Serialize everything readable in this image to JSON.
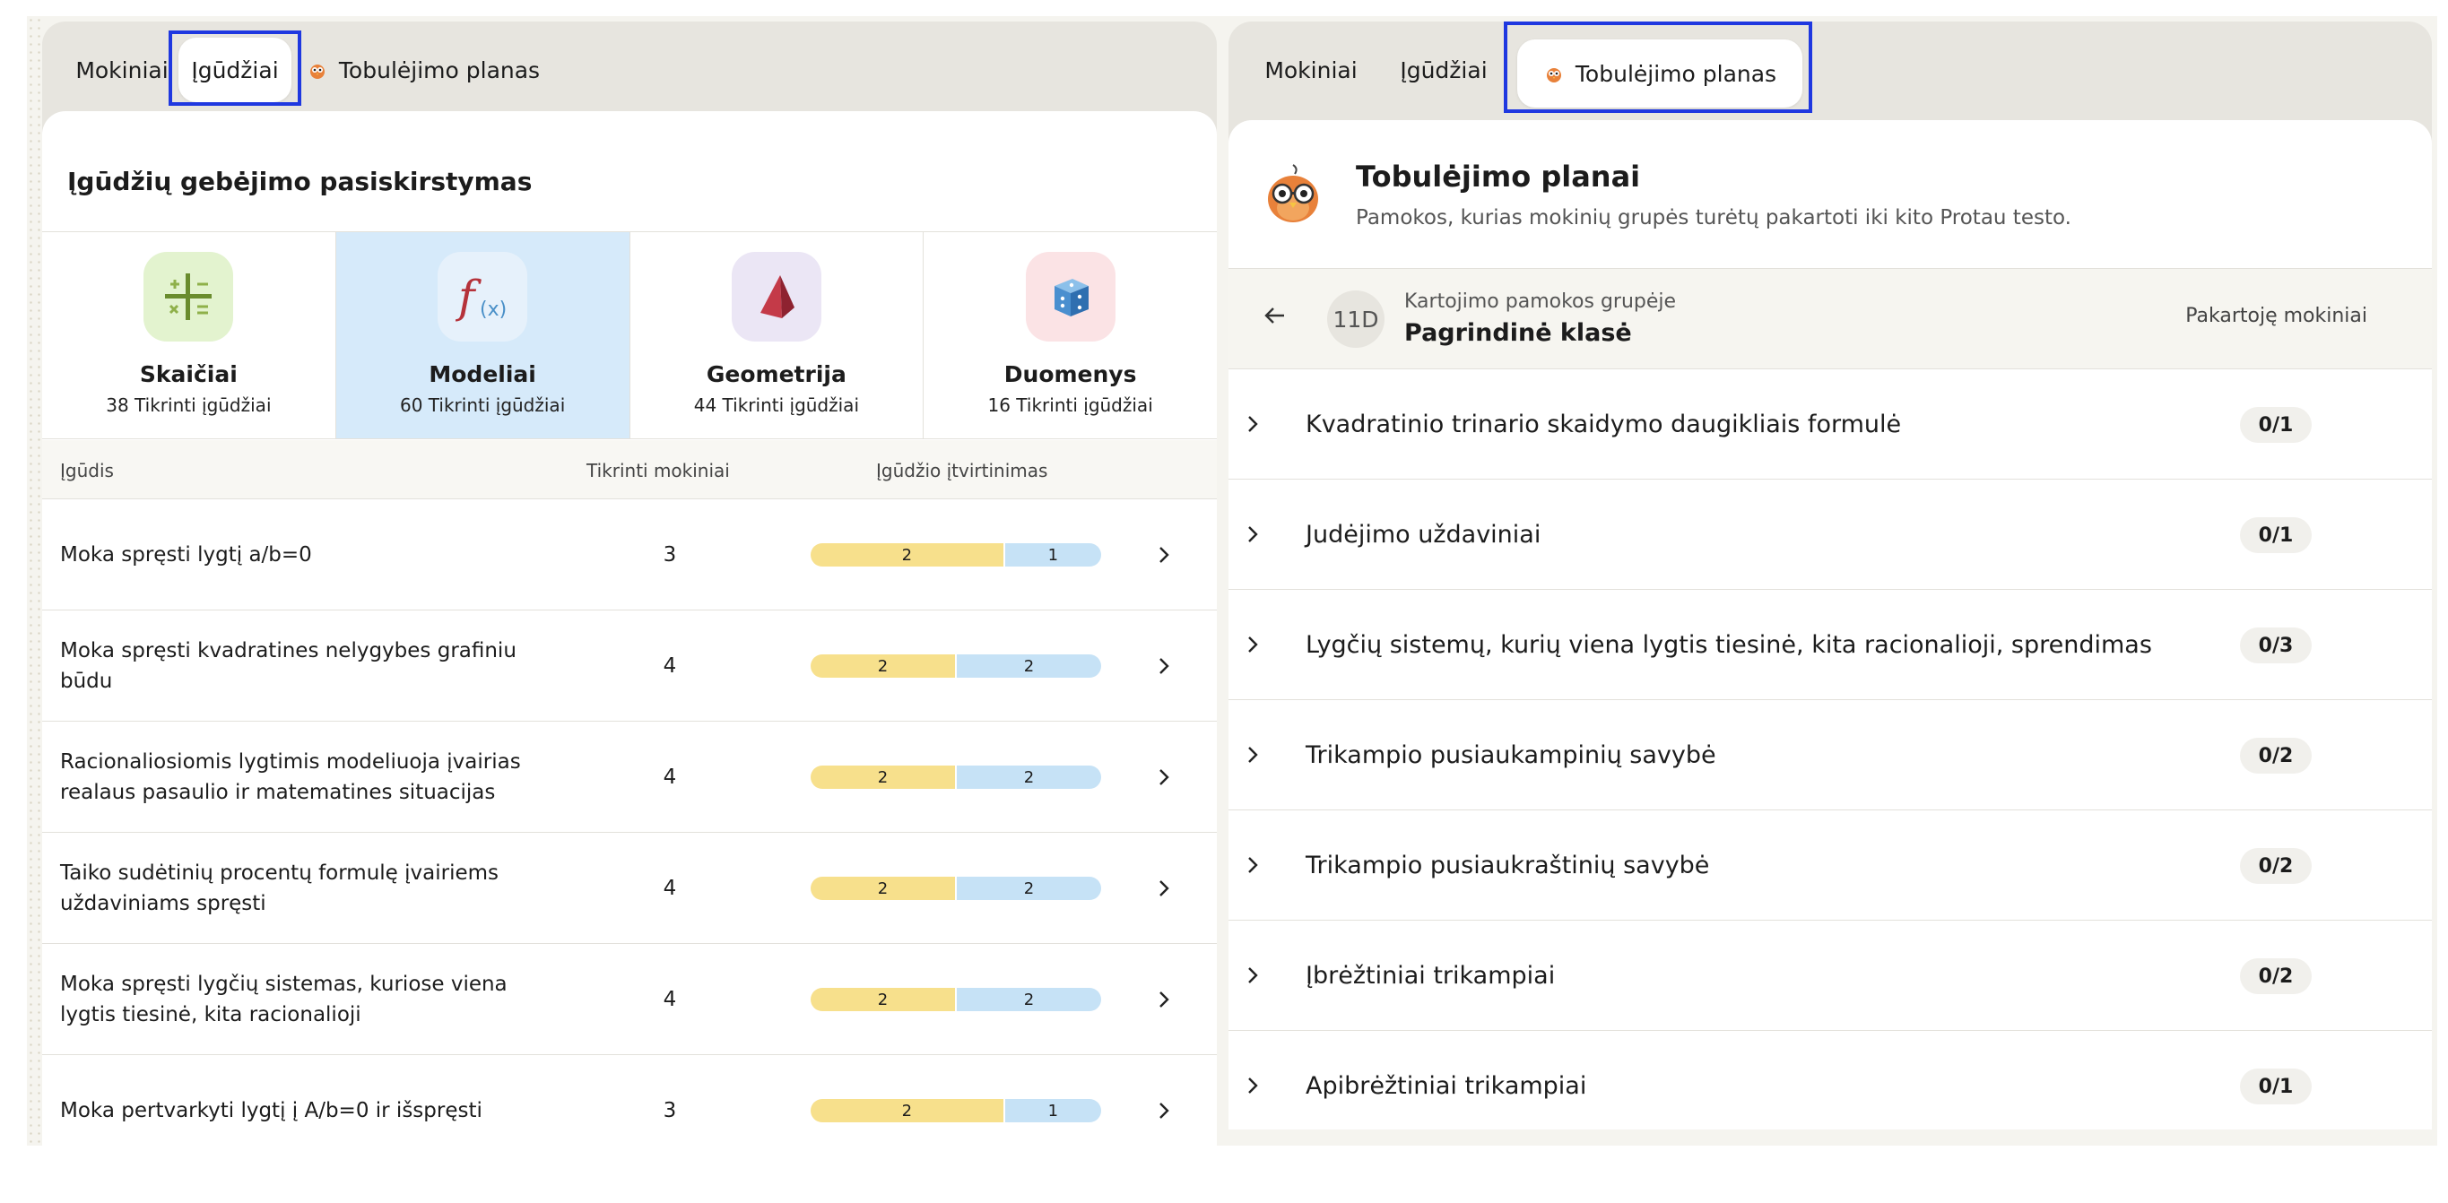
{
  "left": {
    "tabs": [
      {
        "label": "Mokiniai"
      },
      {
        "label": "Įgūdžiai"
      },
      {
        "label": "Tobulėjimo planas",
        "icon": "owl-icon"
      }
    ],
    "title": "Įgūdžių gebėjimo pasiskirstymas",
    "categories": [
      {
        "name": "Skaičiai",
        "sub": "38 Tikrinti įgūdžiai",
        "icon": "arithmetic-icon",
        "color": "#e3f3cf"
      },
      {
        "name": "Modeliai",
        "sub": "60 Tikrinti įgūdžiai",
        "icon": "function-icon",
        "color": "#e6f1fb"
      },
      {
        "name": "Geometrija",
        "sub": "44 Tikrinti įgūdžiai",
        "icon": "pyramid-icon",
        "color": "#ebe6f5"
      },
      {
        "name": "Duomenys",
        "sub": "16 Tikrinti įgūdžiai",
        "icon": "dice-icon",
        "color": "#fbe3e5"
      }
    ],
    "columns": {
      "skill": "Įgūdis",
      "checked": "Tikrinti mokiniai",
      "mastery": "Įgūdžio įtvirtinimas"
    },
    "rows": [
      {
        "skill": "Moka spręsti lygtį a/b=0",
        "count": "3",
        "yellow": "2",
        "blue": "1"
      },
      {
        "skill": "Moka spręsti kvadratines nelygybes grafiniu būdu",
        "count": "4",
        "yellow": "2",
        "blue": "2"
      },
      {
        "skill": "Racionaliosiomis lygtimis modeliuoja įvairias realaus pasaulio ir matematines situacijas",
        "count": "4",
        "yellow": "2",
        "blue": "2"
      },
      {
        "skill": "Taiko sudėtinių procentų formulę įvairiems uždaviniams spręsti",
        "count": "4",
        "yellow": "2",
        "blue": "2"
      },
      {
        "skill": "Moka spręsti lygčių sistemas, kuriose viena lygtis tiesinė, kita racionalioji",
        "count": "4",
        "yellow": "2",
        "blue": "2"
      },
      {
        "skill": "Moka pertvarkyti lygtį į A/b=0 ir išspręsti",
        "count": "3",
        "yellow": "2",
        "blue": "1"
      }
    ]
  },
  "right": {
    "tabs": [
      {
        "label": "Mokiniai"
      },
      {
        "label": "Įgūdžiai"
      },
      {
        "label": "Tobulėjimo planas",
        "icon": "owl-icon"
      }
    ],
    "title": "Tobulėjimo planai",
    "subtitle": "Pamokos, kurias mokinių grupės turėtų pakartoti iki kito Protau testo.",
    "group": {
      "badge": "11D",
      "label": "Kartojimo pamokos grupėje",
      "name": "Pagrindinė klasė",
      "right_label": "Pakartoję mokiniai"
    },
    "lessons": [
      {
        "title": "Kvadratinio trinario skaidymo daugikliais formulė",
        "progress": "0/1"
      },
      {
        "title": "Judėjimo uždaviniai",
        "progress": "0/1"
      },
      {
        "title": "Lygčių sistemų, kurių viena lygtis tiesinė, kita racionalioji, sprendimas",
        "progress": "0/3"
      },
      {
        "title": "Trikampio pusiaukampinių savybė",
        "progress": "0/2"
      },
      {
        "title": "Trikampio pusiaukraštinių savybė",
        "progress": "0/2"
      },
      {
        "title": "Įbrėžtiniai trikampiai",
        "progress": "0/2"
      },
      {
        "title": "Apibrėžtiniai trikampiai",
        "progress": "0/1"
      }
    ]
  },
  "colors": {
    "highlight": "#1f38e0",
    "bar_yellow": "#f7e08c",
    "bar_blue": "#c6e2f6",
    "active_category": "#d6eafa"
  }
}
